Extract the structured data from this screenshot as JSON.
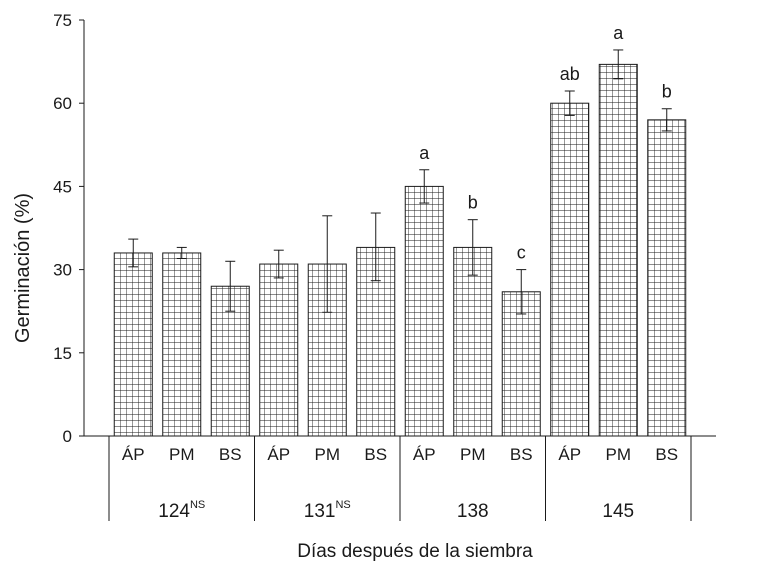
{
  "chart_data": {
    "type": "bar",
    "ylabel": "Germinación (%)",
    "xlabel": "Días después de la siembra",
    "ylim": [
      0,
      75
    ],
    "yticks": [
      "0",
      "15",
      "30",
      "45",
      "60",
      "75"
    ],
    "grid": false,
    "bar_pattern": "grid-hatch",
    "groups": [
      {
        "label": "124",
        "sup": "NS",
        "bars": [
          {
            "category": "ÁP",
            "value": 33,
            "err_low": 30.5,
            "err_high": 35.5,
            "letter": ""
          },
          {
            "category": "PM",
            "value": 33,
            "err_low": 32,
            "err_high": 34,
            "letter": ""
          },
          {
            "category": "BS",
            "value": 27,
            "err_low": 22.5,
            "err_high": 31.5,
            "letter": ""
          }
        ]
      },
      {
        "label": "131",
        "sup": "NS",
        "bars": [
          {
            "category": "ÁP",
            "value": 31,
            "err_low": 28.5,
            "err_high": 33.5,
            "letter": ""
          },
          {
            "category": "PM",
            "value": 31,
            "err_low": 22.3,
            "err_high": 39.7,
            "letter": ""
          },
          {
            "category": "BS",
            "value": 34,
            "err_low": 28,
            "err_high": 40.2,
            "letter": ""
          }
        ]
      },
      {
        "label": "138",
        "sup": "",
        "bars": [
          {
            "category": "ÁP",
            "value": 45,
            "err_low": 42,
            "err_high": 48,
            "letter": "a"
          },
          {
            "category": "PM",
            "value": 34,
            "err_low": 29,
            "err_high": 39,
            "letter": "b"
          },
          {
            "category": "BS",
            "value": 26,
            "err_low": 22,
            "err_high": 30,
            "letter": "c"
          }
        ]
      },
      {
        "label": "145",
        "sup": "",
        "bars": [
          {
            "category": "ÁP",
            "value": 60,
            "err_low": 57.8,
            "err_high": 62.2,
            "letter": "ab"
          },
          {
            "category": "PM",
            "value": 67,
            "err_low": 64.4,
            "err_high": 69.6,
            "letter": "a"
          },
          {
            "category": "BS",
            "value": 57,
            "err_low": 55,
            "err_high": 59,
            "letter": "b"
          }
        ]
      }
    ]
  }
}
